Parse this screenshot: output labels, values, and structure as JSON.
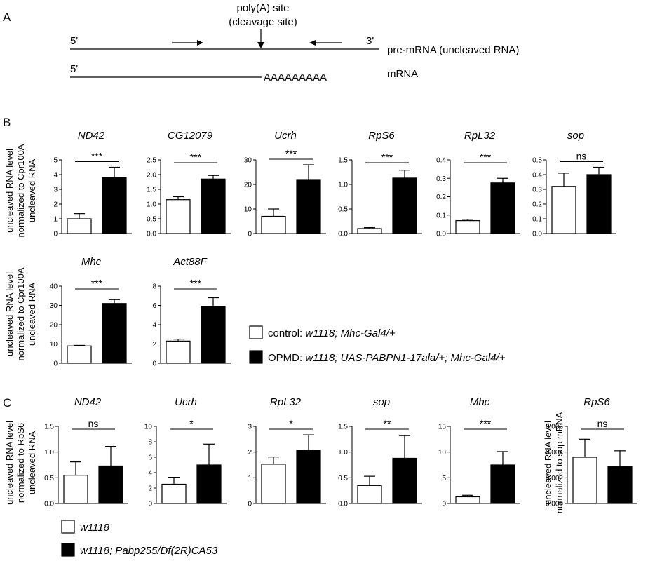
{
  "figure": {
    "panel_labels": [
      "A",
      "B",
      "C"
    ],
    "schematic": {
      "site_label_line1": "poly(A) site",
      "site_label_line2": "(cleavage site)",
      "five_prime": "5'",
      "three_prime": "3'",
      "five_prime_mrna": "5'",
      "premrna_label": "pre-mRNA (uncleaved RNA)",
      "polyA_tail": "AAAAAAAAA",
      "mrna_label": "mRNA"
    },
    "b_ylabel": [
      "uncleaved RNA level",
      "normalized to Cpr100A",
      "uncleaved RNA"
    ],
    "c_ylabel": [
      "uncleaved RNA level",
      "normalized to RpS6",
      "uncleaved RNA"
    ],
    "c_ylabel2": [
      "uncleaved  RNA level",
      "normalized to sop mRNA"
    ],
    "legend_b": [
      {
        "prefix": "control: ",
        "genotype": "w1118; Mhc-Gal4/+",
        "fill": "#ffffff"
      },
      {
        "prefix": "OPMD: ",
        "genotype": "w1118; UAS-PABPN1-17ala/+; Mhc-Gal4/+",
        "fill": "#000000"
      }
    ],
    "legend_c": [
      {
        "genotype": "w1118",
        "fill": "#ffffff"
      },
      {
        "genotype": "w1118; Pabp255/Df(2R)CA53",
        "fill": "#000000"
      }
    ]
  },
  "chart_data": [
    {
      "panel": "B",
      "type": "bar",
      "title": "ND42",
      "categories": [
        "control",
        "OPMD"
      ],
      "values": [
        1.0,
        3.8
      ],
      "errors": [
        0.35,
        0.7
      ],
      "ylim": [
        0,
        5
      ],
      "ticks": [
        "0",
        "1",
        "2",
        "3",
        "4",
        "5"
      ],
      "significance": "***"
    },
    {
      "panel": "B",
      "type": "bar",
      "title": "CG12079",
      "categories": [
        "control",
        "OPMD"
      ],
      "values": [
        1.15,
        1.85
      ],
      "errors": [
        0.1,
        0.12
      ],
      "ylim": [
        0,
        2.5
      ],
      "ticks": [
        "0.0",
        "0.5",
        "1.0",
        "1.5",
        "2.0",
        "2.5"
      ],
      "significance": "***"
    },
    {
      "panel": "B",
      "type": "bar",
      "title": "Ucrh",
      "categories": [
        "control",
        "OPMD"
      ],
      "values": [
        7,
        22
      ],
      "errors": [
        3,
        6
      ],
      "ylim": [
        0,
        30
      ],
      "ticks": [
        "0",
        "10",
        "20",
        "30"
      ],
      "significance": "***"
    },
    {
      "panel": "B",
      "type": "bar",
      "title": "RpS6",
      "categories": [
        "control",
        "OPMD"
      ],
      "values": [
        0.1,
        1.13
      ],
      "errors": [
        0.02,
        0.16
      ],
      "ylim": [
        0,
        1.5
      ],
      "ticks": [
        "0.0",
        "0.5",
        "1.0",
        "1.5"
      ],
      "significance": "***"
    },
    {
      "panel": "B",
      "type": "bar",
      "title": "RpL32",
      "categories": [
        "control",
        "OPMD"
      ],
      "values": [
        0.07,
        0.275
      ],
      "errors": [
        0.007,
        0.025
      ],
      "ylim": [
        0,
        0.4
      ],
      "ticks": [
        "0.0",
        "0.1",
        "0.2",
        "0.3",
        "0.4"
      ],
      "significance": "***"
    },
    {
      "panel": "B",
      "type": "bar",
      "title": "sop",
      "categories": [
        "control",
        "OPMD"
      ],
      "values": [
        0.32,
        0.4
      ],
      "errors": [
        0.09,
        0.05
      ],
      "ylim": [
        0,
        0.5
      ],
      "ticks": [
        "0.0",
        "0.1",
        "0.2",
        "0.3",
        "0.4",
        "0.5"
      ],
      "significance": "ns"
    },
    {
      "panel": "B",
      "type": "bar",
      "title": "Mhc",
      "categories": [
        "control",
        "OPMD"
      ],
      "values": [
        9,
        31
      ],
      "errors": [
        0.3,
        2
      ],
      "ylim": [
        0,
        40
      ],
      "ticks": [
        "0",
        "10",
        "20",
        "30",
        "40"
      ],
      "significance": "***"
    },
    {
      "panel": "B",
      "type": "bar",
      "title": "Act88F",
      "categories": [
        "control",
        "OPMD"
      ],
      "values": [
        2.3,
        5.9
      ],
      "errors": [
        0.2,
        0.9
      ],
      "ylim": [
        0,
        8
      ],
      "ticks": [
        "0",
        "2",
        "4",
        "6",
        "8"
      ],
      "significance": "***"
    },
    {
      "panel": "C",
      "type": "bar",
      "title": "ND42",
      "categories": [
        "w1118",
        "w1118; Pabp255/Df(2R)CA53"
      ],
      "values": [
        0.55,
        0.73
      ],
      "errors": [
        0.26,
        0.38
      ],
      "ylim": [
        0,
        1.5
      ],
      "ticks": [
        "0.0",
        "0.5",
        "1.0",
        "1.5"
      ],
      "significance": "ns"
    },
    {
      "panel": "C",
      "type": "bar",
      "title": "Ucrh",
      "categories": [
        "w1118",
        "w1118; Pabp255/Df(2R)CA53"
      ],
      "values": [
        2.5,
        5.0
      ],
      "errors": [
        0.9,
        2.7
      ],
      "ylim": [
        0,
        10
      ],
      "ticks": [
        "0",
        "2",
        "4",
        "6",
        "8",
        "10"
      ],
      "significance": "*"
    },
    {
      "panel": "C",
      "type": "bar",
      "title": "RpL32",
      "categories": [
        "w1118",
        "w1118; Pabp255/Df(2R)CA53"
      ],
      "values": [
        1.53,
        2.07
      ],
      "errors": [
        0.28,
        0.6
      ],
      "ylim": [
        0,
        3
      ],
      "ticks": [
        "0",
        "1",
        "2",
        "3"
      ],
      "significance": "*"
    },
    {
      "panel": "C",
      "type": "bar",
      "title": "sop",
      "categories": [
        "w1118",
        "w1118; Pabp255/Df(2R)CA53"
      ],
      "values": [
        0.35,
        0.88
      ],
      "errors": [
        0.18,
        0.44
      ],
      "ylim": [
        0,
        1.5
      ],
      "ticks": [
        "0.0",
        "0.5",
        "1.0",
        "1.5"
      ],
      "significance": "**"
    },
    {
      "panel": "C",
      "type": "bar",
      "title": "Mhc",
      "categories": [
        "w1118",
        "w1118; Pabp255/Df(2R)CA53"
      ],
      "values": [
        1.3,
        7.5
      ],
      "errors": [
        0.3,
        2.6
      ],
      "ylim": [
        0,
        15
      ],
      "ticks": [
        "0",
        "5",
        "10",
        "15"
      ],
      "significance": "***"
    },
    {
      "panel": "C",
      "type": "bar",
      "title": "RpS6",
      "categories": [
        "w1118",
        "w1118; Pabp255/Df(2R)CA53"
      ],
      "values": [
        0.0036,
        0.0029
      ],
      "errors": [
        0.0014,
        0.0012
      ],
      "ylim": [
        0,
        0.006
      ],
      "ticks": [
        "0.000",
        "0.002",
        "0.004",
        "0.006"
      ],
      "significance": "ns"
    }
  ]
}
